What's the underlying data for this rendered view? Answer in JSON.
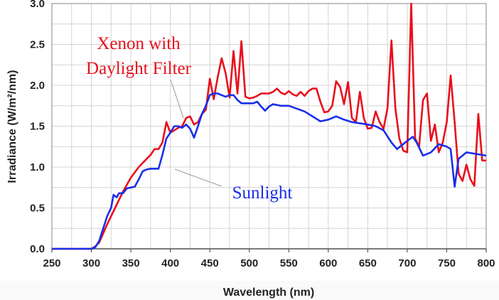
{
  "chart_data": {
    "type": "line",
    "title": "",
    "xlabel": "Wavelength (nm)",
    "ylabel": "Irradiance (W/m²/nm)",
    "xlim": [
      250,
      800
    ],
    "ylim": [
      0,
      3.0
    ],
    "xticks": [
      "250",
      "300",
      "350",
      "400",
      "450",
      "500",
      "550",
      "600",
      "650",
      "700",
      "750",
      "800"
    ],
    "yticks": [
      "0.0",
      "0.5",
      "1.0",
      "1.5",
      "2.0",
      "2.5",
      "3.0"
    ],
    "grid": true,
    "annotations": {
      "xenon_line1": "Xenon with",
      "xenon_line2": "Daylight Filter",
      "sunlight": "Sunlight"
    },
    "series": [
      {
        "name": "Xenon with Daylight Filter",
        "color": "#e8101c",
        "x": [
          250,
          300,
          305,
          310,
          320,
          330,
          340,
          350,
          360,
          370,
          375,
          380,
          385,
          390,
          395,
          400,
          405,
          410,
          415,
          420,
          425,
          430,
          435,
          440,
          445,
          450,
          455,
          460,
          465,
          470,
          475,
          480,
          485,
          490,
          495,
          500,
          505,
          510,
          515,
          520,
          525,
          530,
          535,
          540,
          545,
          550,
          555,
          560,
          565,
          570,
          575,
          580,
          585,
          590,
          595,
          600,
          605,
          610,
          615,
          620,
          625,
          630,
          635,
          640,
          645,
          650,
          655,
          660,
          665,
          670,
          675,
          680,
          685,
          690,
          695,
          700,
          705,
          710,
          715,
          720,
          725,
          730,
          735,
          740,
          745,
          750,
          755,
          760,
          765,
          770,
          775,
          780,
          785,
          790,
          795,
          800
        ],
        "y": [
          0,
          0,
          0.03,
          0.08,
          0.3,
          0.5,
          0.7,
          0.87,
          1.0,
          1.1,
          1.15,
          1.22,
          1.22,
          1.3,
          1.55,
          1.42,
          1.45,
          1.48,
          1.5,
          1.6,
          1.62,
          1.52,
          1.55,
          1.65,
          1.7,
          2.08,
          1.83,
          2.1,
          2.33,
          2.15,
          1.85,
          2.42,
          1.9,
          2.54,
          1.86,
          1.84,
          1.85,
          1.87,
          1.9,
          1.9,
          1.9,
          1.92,
          1.96,
          1.91,
          1.89,
          1.93,
          1.89,
          1.87,
          1.92,
          1.87,
          1.93,
          1.96,
          1.96,
          1.8,
          1.67,
          1.68,
          1.75,
          2.05,
          1.98,
          1.77,
          2.04,
          1.6,
          1.55,
          1.92,
          1.6,
          1.47,
          1.48,
          1.68,
          1.55,
          1.47,
          1.72,
          2.55,
          1.72,
          1.35,
          1.2,
          1.18,
          3.0,
          1.35,
          1.25,
          1.82,
          1.9,
          1.32,
          1.52,
          1.18,
          1.3,
          1.55,
          2.12,
          1.55,
          0.92,
          0.83,
          1.03,
          0.85,
          0.77,
          1.65,
          1.08,
          1.08
        ]
      },
      {
        "name": "Sunlight",
        "color": "#1a2ee8",
        "x": [
          250,
          300,
          305,
          310,
          315,
          320,
          325,
          328,
          332,
          335,
          340,
          345,
          350,
          355,
          360,
          365,
          370,
          375,
          380,
          385,
          390,
          395,
          400,
          405,
          410,
          415,
          420,
          425,
          430,
          435,
          440,
          445,
          450,
          455,
          460,
          465,
          470,
          475,
          480,
          485,
          490,
          500,
          505,
          510,
          515,
          520,
          525,
          530,
          540,
          550,
          570,
          590,
          600,
          610,
          620,
          630,
          650,
          660,
          670,
          680,
          687,
          700,
          707,
          712,
          720,
          730,
          740,
          750,
          755,
          760,
          765,
          775,
          800
        ],
        "y": [
          0,
          0,
          0.02,
          0.1,
          0.25,
          0.4,
          0.5,
          0.66,
          0.63,
          0.68,
          0.68,
          0.74,
          0.75,
          0.76,
          0.85,
          0.95,
          0.97,
          0.98,
          0.98,
          0.98,
          1.15,
          1.35,
          1.42,
          1.5,
          1.5,
          1.48,
          1.52,
          1.47,
          1.36,
          1.5,
          1.65,
          1.75,
          1.88,
          1.9,
          1.9,
          1.88,
          1.86,
          1.88,
          1.88,
          1.82,
          1.78,
          1.78,
          1.78,
          1.8,
          1.74,
          1.69,
          1.74,
          1.77,
          1.75,
          1.75,
          1.68,
          1.56,
          1.58,
          1.62,
          1.58,
          1.55,
          1.52,
          1.5,
          1.45,
          1.3,
          1.22,
          1.32,
          1.37,
          1.3,
          1.14,
          1.18,
          1.28,
          1.25,
          1.22,
          0.76,
          1.1,
          1.18,
          1.14
        ]
      }
    ]
  }
}
